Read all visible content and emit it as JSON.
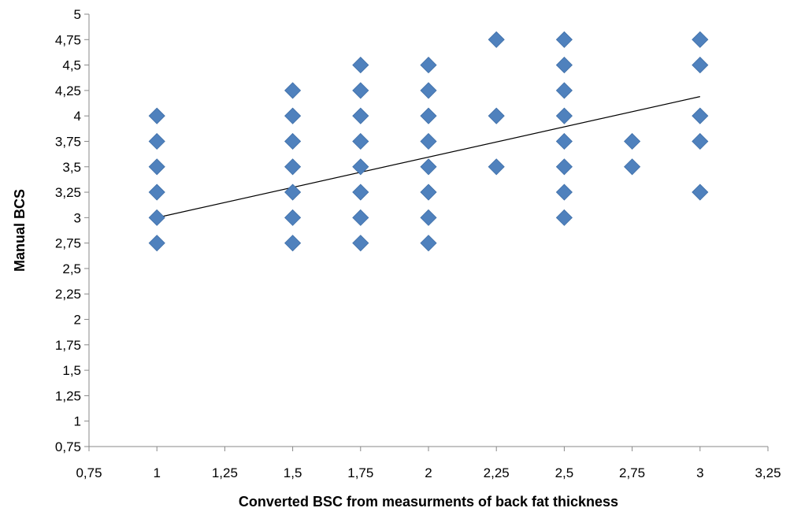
{
  "chart_data": {
    "type": "scatter",
    "title": "",
    "xlabel": "Converted BSC from measurments of back fat thickness",
    "ylabel": "Manual BCS",
    "xlim": [
      0.75,
      3.25
    ],
    "ylim": [
      0.75,
      5
    ],
    "x_ticks": [
      "0,75",
      "1",
      "1,25",
      "1,5",
      "1,75",
      "2",
      "2,25",
      "2,5",
      "2,75",
      "3",
      "3,25"
    ],
    "x_tick_values": [
      0.75,
      1,
      1.25,
      1.5,
      1.75,
      2,
      2.25,
      2.5,
      2.75,
      3,
      3.25
    ],
    "y_ticks": [
      "0,75",
      "1",
      "1,25",
      "1,5",
      "1,75",
      "2",
      "2,25",
      "2,5",
      "2,75",
      "3",
      "3,25",
      "3,5",
      "3,75",
      "4",
      "4,25",
      "4,5",
      "4,75",
      "5"
    ],
    "y_tick_values": [
      0.75,
      1,
      1.25,
      1.5,
      1.75,
      2,
      2.25,
      2.5,
      2.75,
      3,
      3.25,
      3.5,
      3.75,
      4,
      4.25,
      4.5,
      4.75,
      5
    ],
    "grid": false,
    "legend": "none",
    "marker": "diamond",
    "marker_color": "#4f81bd",
    "trendline_color": "#000000",
    "points": [
      {
        "x": 1,
        "y": 4
      },
      {
        "x": 1,
        "y": 3.75
      },
      {
        "x": 1,
        "y": 3.5
      },
      {
        "x": 1,
        "y": 3.25
      },
      {
        "x": 1,
        "y": 3
      },
      {
        "x": 1,
        "y": 2.75
      },
      {
        "x": 1.5,
        "y": 4.25
      },
      {
        "x": 1.5,
        "y": 4
      },
      {
        "x": 1.5,
        "y": 3.75
      },
      {
        "x": 1.5,
        "y": 3.5
      },
      {
        "x": 1.5,
        "y": 3.25
      },
      {
        "x": 1.5,
        "y": 3
      },
      {
        "x": 1.5,
        "y": 2.75
      },
      {
        "x": 1.75,
        "y": 4.5
      },
      {
        "x": 1.75,
        "y": 4.25
      },
      {
        "x": 1.75,
        "y": 4
      },
      {
        "x": 1.75,
        "y": 3.75
      },
      {
        "x": 1.75,
        "y": 3.5
      },
      {
        "x": 1.75,
        "y": 3.25
      },
      {
        "x": 1.75,
        "y": 3
      },
      {
        "x": 1.75,
        "y": 2.75
      },
      {
        "x": 2,
        "y": 4.5
      },
      {
        "x": 2,
        "y": 4.25
      },
      {
        "x": 2,
        "y": 4
      },
      {
        "x": 2,
        "y": 3.75
      },
      {
        "x": 2,
        "y": 3.5
      },
      {
        "x": 2,
        "y": 3.25
      },
      {
        "x": 2,
        "y": 3
      },
      {
        "x": 2,
        "y": 2.75
      },
      {
        "x": 2.25,
        "y": 4.75
      },
      {
        "x": 2.25,
        "y": 4
      },
      {
        "x": 2.25,
        "y": 3.5
      },
      {
        "x": 2.5,
        "y": 4.75
      },
      {
        "x": 2.5,
        "y": 4.5
      },
      {
        "x": 2.5,
        "y": 4.25
      },
      {
        "x": 2.5,
        "y": 4
      },
      {
        "x": 2.5,
        "y": 3.75
      },
      {
        "x": 2.5,
        "y": 3.5
      },
      {
        "x": 2.5,
        "y": 3.25
      },
      {
        "x": 2.5,
        "y": 3
      },
      {
        "x": 2.75,
        "y": 3.75
      },
      {
        "x": 2.75,
        "y": 3.5
      },
      {
        "x": 3,
        "y": 4.75
      },
      {
        "x": 3,
        "y": 4.5
      },
      {
        "x": 3,
        "y": 4
      },
      {
        "x": 3,
        "y": 3.75
      },
      {
        "x": 3,
        "y": 3.25
      }
    ],
    "trendline": {
      "x": [
        1,
        3
      ],
      "y": [
        3.0,
        4.19
      ]
    }
  }
}
